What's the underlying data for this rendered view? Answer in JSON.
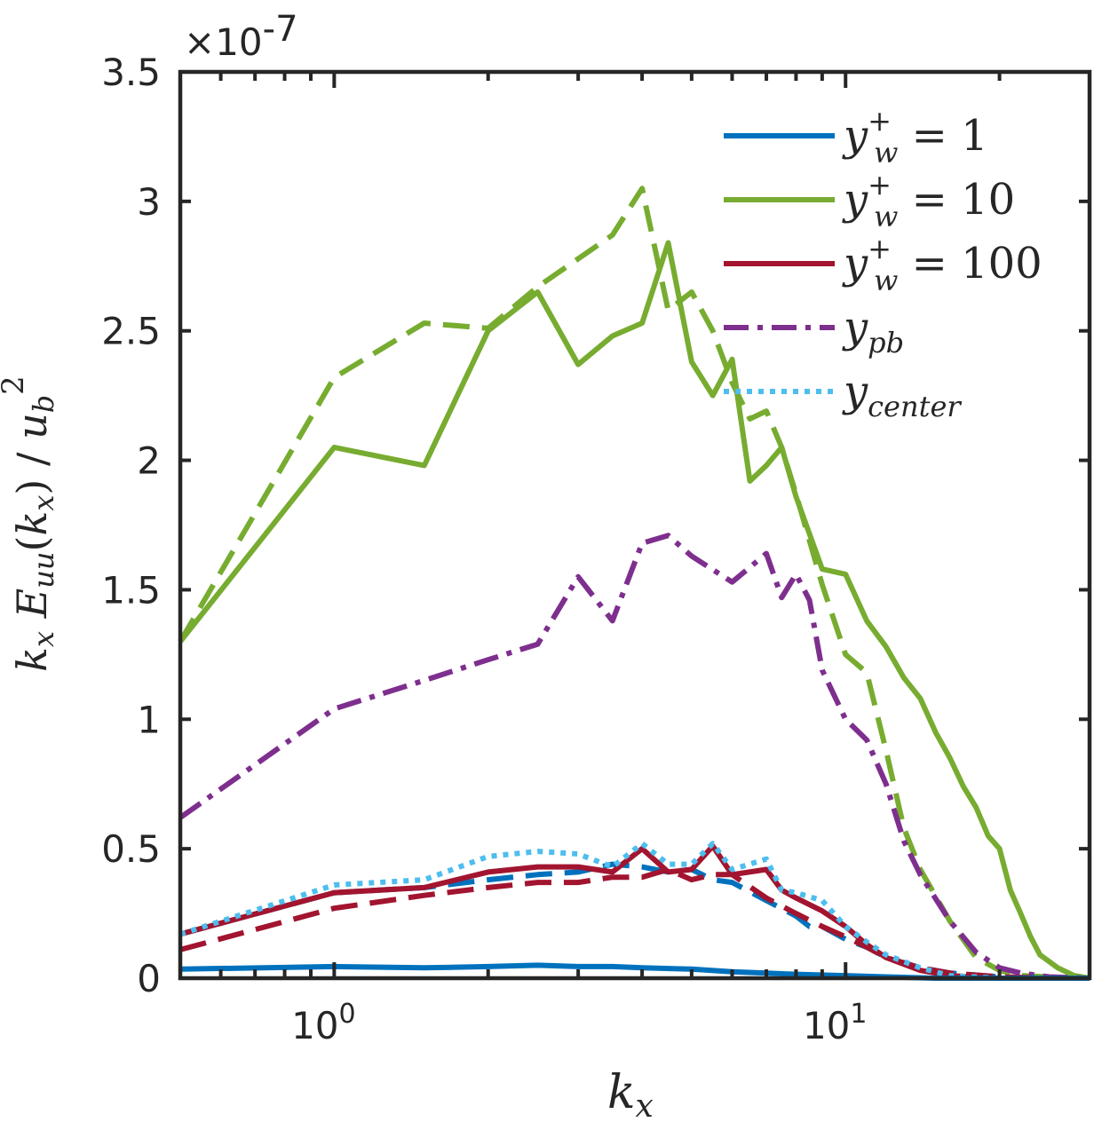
{
  "chart_data": {
    "type": "line",
    "x_scale": "log",
    "xlim": [
      0.5,
      30
    ],
    "ylim": [
      0,
      3.5
    ],
    "y_multiplier_label": "×10",
    "y_multiplier_exponent": "-7",
    "xlabel": {
      "base": "k",
      "sub": "x"
    },
    "ylabel": {
      "text": "kx Euu(kx) / ub²"
    },
    "y_ticks": [
      0,
      0.5,
      1,
      1.5,
      2,
      2.5,
      3,
      3.5
    ],
    "y_tick_labels": [
      "0",
      "0.5",
      "1",
      "1.5",
      "2",
      "2.5",
      "3",
      "3.5"
    ],
    "x_ticks": [
      1,
      10
    ],
    "x_tick_labels": [
      {
        "base": "10",
        "exp": "0"
      },
      {
        "base": "10",
        "exp": "1"
      }
    ],
    "legend": {
      "placement": "top-right",
      "entries": [
        {
          "label_main": "y",
          "label_sup": "+",
          "label_sub": "w",
          "label_tail": " = 1",
          "color": "#0072BD",
          "style": "solid"
        },
        {
          "label_main": "y",
          "label_sup": "+",
          "label_sub": "w",
          "label_tail": " = 10",
          "color": "#77AC30",
          "style": "solid"
        },
        {
          "label_main": "y",
          "label_sup": "+",
          "label_sub": "w",
          "label_tail": " = 100",
          "color": "#A2142F",
          "style": "solid"
        },
        {
          "label_main": "y",
          "label_sup": "",
          "label_sub": "pb",
          "label_tail": "",
          "color": "#7E2F8E",
          "style": "dashdot"
        },
        {
          "label_main": "y",
          "label_sup": "",
          "label_sub": "center",
          "label_tail": "",
          "color": "#4DBEEE",
          "style": "dotted"
        }
      ]
    },
    "series": [
      {
        "name": "y_w+ = 10 (dashed)",
        "color": "#77AC30",
        "style": "dashed",
        "x": [
          0.5,
          1.0,
          1.5,
          2.0,
          2.5,
          3.5,
          4.0,
          4.5,
          5.0,
          5.5,
          6.0,
          6.5,
          7.0,
          7.5,
          8.0,
          9.0,
          10.0,
          11.0,
          12.0,
          13.0,
          14.0,
          16.0,
          18.0,
          20.0,
          22.0,
          25.0,
          30.0
        ],
        "y": [
          1.3,
          2.32,
          2.53,
          2.51,
          2.67,
          2.87,
          3.05,
          2.58,
          2.65,
          2.5,
          2.3,
          2.16,
          2.19,
          2.05,
          1.87,
          1.52,
          1.25,
          1.18,
          0.88,
          0.58,
          0.42,
          0.22,
          0.08,
          0.03,
          0.01,
          0.005,
          0.0
        ]
      },
      {
        "name": "y_w+ = 10",
        "color": "#77AC30",
        "style": "solid",
        "x": [
          0.5,
          1.0,
          1.5,
          2.0,
          2.5,
          3.0,
          3.5,
          4.0,
          4.5,
          5.0,
          5.5,
          6.0,
          6.5,
          7.0,
          7.5,
          8.0,
          9.0,
          10.0,
          11.0,
          12.0,
          13.0,
          14.0,
          15.0,
          16.0,
          17.0,
          18.0,
          19.0,
          20.0,
          21.0,
          22.0,
          23.0,
          24.0,
          26.0,
          28.0,
          30.0
        ],
        "y": [
          1.3,
          2.05,
          1.98,
          2.5,
          2.65,
          2.37,
          2.48,
          2.53,
          2.84,
          2.38,
          2.25,
          2.39,
          1.92,
          1.98,
          2.05,
          1.86,
          1.58,
          1.56,
          1.38,
          1.28,
          1.16,
          1.08,
          0.95,
          0.85,
          0.74,
          0.66,
          0.55,
          0.5,
          0.34,
          0.25,
          0.16,
          0.09,
          0.04,
          0.01,
          0.0
        ]
      },
      {
        "name": "y_pb",
        "color": "#7E2F8E",
        "style": "dashdot",
        "x": [
          0.5,
          1.0,
          1.5,
          2.0,
          2.5,
          3.0,
          3.5,
          4.0,
          4.5,
          5.0,
          6.0,
          7.0,
          7.5,
          8.0,
          8.5,
          9.0,
          10.0,
          11.0,
          12.0,
          13.0,
          14.0,
          16.0,
          18.0,
          20.0,
          22.0,
          25.0,
          30.0
        ],
        "y": [
          0.62,
          1.04,
          1.15,
          1.23,
          1.29,
          1.55,
          1.38,
          1.68,
          1.71,
          1.63,
          1.53,
          1.64,
          1.47,
          1.56,
          1.46,
          1.19,
          1.0,
          0.92,
          0.75,
          0.53,
          0.4,
          0.22,
          0.1,
          0.04,
          0.02,
          0.005,
          0.0
        ]
      },
      {
        "name": "y_w+ = 1 (dashed)",
        "color": "#0072BD",
        "style": "dashed",
        "x": [
          0.5,
          1.0,
          1.5,
          2.0,
          2.5,
          3.0,
          3.5,
          4.0,
          4.5,
          5.0,
          5.5,
          6.0,
          7.0,
          8.0,
          8.5,
          9.0,
          10.0,
          11.0,
          12.0,
          14.0,
          16.0,
          20.0,
          25.0,
          30.0
        ],
        "y": [
          0.17,
          0.33,
          0.35,
          0.38,
          0.4,
          0.41,
          0.44,
          0.43,
          0.41,
          0.42,
          0.38,
          0.37,
          0.3,
          0.24,
          0.2,
          0.2,
          0.15,
          0.12,
          0.08,
          0.04,
          0.02,
          0.005,
          0.0,
          0.0
        ]
      },
      {
        "name": "y_w+ = 100 (dashed)",
        "color": "#A2142F",
        "style": "dashed",
        "x": [
          0.5,
          1.0,
          1.5,
          2.0,
          2.5,
          3.0,
          3.5,
          4.0,
          4.5,
          5.0,
          5.5,
          6.0,
          7.0,
          8.0,
          9.0,
          10.0,
          11.0,
          12.0,
          14.0,
          16.0,
          20.0,
          25.0,
          30.0
        ],
        "y": [
          0.11,
          0.27,
          0.32,
          0.35,
          0.37,
          0.37,
          0.39,
          0.39,
          0.42,
          0.38,
          0.4,
          0.4,
          0.31,
          0.25,
          0.2,
          0.16,
          0.12,
          0.08,
          0.04,
          0.02,
          0.005,
          0.0,
          0.0
        ]
      },
      {
        "name": "y_w+ = 100",
        "color": "#A2142F",
        "style": "solid",
        "x": [
          0.5,
          1.0,
          1.5,
          2.0,
          2.5,
          3.0,
          3.5,
          4.0,
          4.5,
          5.0,
          5.5,
          6.0,
          7.0,
          7.5,
          8.0,
          9.0,
          10.0,
          11.0,
          12.0,
          14.0,
          16.0,
          20.0,
          25.0,
          30.0
        ],
        "y": [
          0.17,
          0.33,
          0.35,
          0.41,
          0.43,
          0.43,
          0.41,
          0.5,
          0.41,
          0.42,
          0.51,
          0.4,
          0.42,
          0.34,
          0.31,
          0.26,
          0.2,
          0.13,
          0.08,
          0.03,
          0.01,
          0.0,
          0.0,
          0.0
        ]
      },
      {
        "name": "y_center",
        "color": "#4DBEEE",
        "style": "dotted",
        "x": [
          0.5,
          1.0,
          1.5,
          2.0,
          2.5,
          3.0,
          3.5,
          4.0,
          4.5,
          5.0,
          5.5,
          6.0,
          7.0,
          7.5,
          8.0,
          9.0,
          10.0,
          11.0,
          12.0,
          14.0,
          16.0,
          20.0,
          25.0,
          30.0
        ],
        "y": [
          0.17,
          0.36,
          0.38,
          0.47,
          0.49,
          0.48,
          0.43,
          0.52,
          0.44,
          0.44,
          0.52,
          0.42,
          0.46,
          0.34,
          0.33,
          0.3,
          0.2,
          0.14,
          0.09,
          0.04,
          0.01,
          0.0,
          0.0,
          0.0
        ]
      },
      {
        "name": "y_w+ = 1",
        "color": "#0072BD",
        "style": "solid",
        "x": [
          0.5,
          1.0,
          1.5,
          2.0,
          2.5,
          3.0,
          3.5,
          4.0,
          5.0,
          6.0,
          7.0,
          8.0,
          10.0,
          12.0,
          15.0,
          20.0,
          30.0
        ],
        "y": [
          0.035,
          0.045,
          0.04,
          0.045,
          0.05,
          0.045,
          0.045,
          0.04,
          0.035,
          0.025,
          0.02,
          0.015,
          0.01,
          0.005,
          0.0,
          0.0,
          0.0
        ]
      }
    ]
  }
}
